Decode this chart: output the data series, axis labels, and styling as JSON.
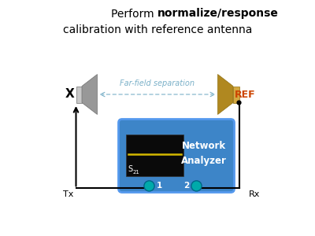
{
  "title_line1_plain": "Perform ",
  "title_line1_bold": "normalize/response",
  "title_line2": "calibration with reference antenna",
  "label_x": "X",
  "label_ref": "REF",
  "label_far_field": "Far-field separation",
  "label_tx": "Tx",
  "label_rx": "Rx",
  "label_s21": "S",
  "label_s21_sub": "21",
  "label_network": "Network",
  "label_analyzer": "Analyzer",
  "label_port1": "1",
  "label_port2": "2",
  "box_blue": "#3d85c8",
  "box_screen_bg": "#0a0a0a",
  "screen_line_color": "#d4b800",
  "port_color": "#00aaaa",
  "port_dark": "#006688",
  "ref_label_color": "#cc4400",
  "arrow_color": "#000000",
  "farfield_color": "#7ab0c8",
  "antenna_x_color1": "#c8c8c8",
  "antenna_x_color2": "#888888",
  "antenna_ref_color1": "#d4a840",
  "antenna_ref_color2": "#b08820",
  "title_fontsize": 10,
  "label_fontsize": 8,
  "small_fontsize": 7,
  "fig_width": 4.0,
  "fig_height": 3.0,
  "dpi": 100
}
